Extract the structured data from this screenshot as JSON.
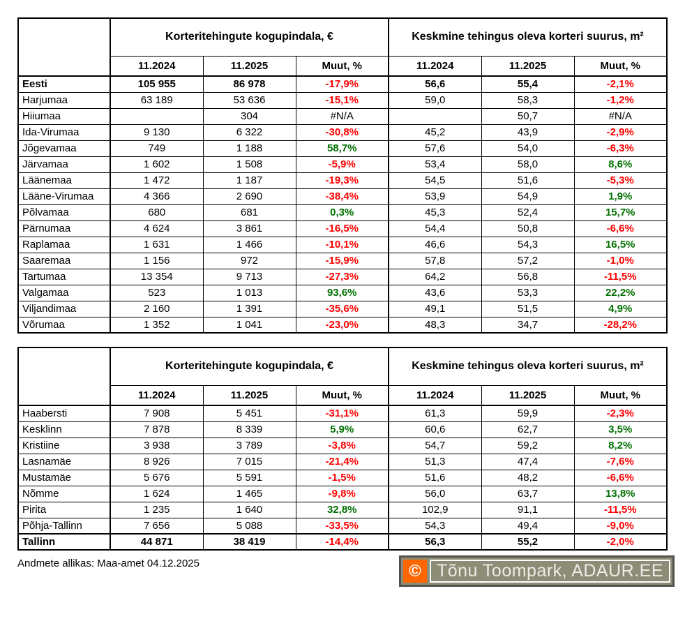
{
  "columns": {
    "group1": "Korteritehingute kogupindala, €",
    "group2": "Keskmine tehingus oleva korteri suurus, m²",
    "sub": [
      "11.2024",
      "11.2025",
      "Muut, %"
    ]
  },
  "chart_data": [
    {
      "type": "table",
      "group_headers": [
        "Korteritehingute kogupindala, €",
        "Keskmine tehingus oleva korteri suurus, m²"
      ],
      "sub_headers": [
        "11.2024",
        "11.2025",
        "Muut, %",
        "11.2024",
        "11.2025",
        "Muut, %"
      ],
      "rows": [
        {
          "name": "Eesti",
          "bold": true,
          "total": false,
          "values": [
            "105 955",
            "86 978",
            "-17,9%",
            "56,6",
            "55,4",
            "-2,1%"
          ]
        },
        {
          "name": "Harjumaa",
          "bold": false,
          "total": false,
          "values": [
            "63 189",
            "53 636",
            "-15,1%",
            "59,0",
            "58,3",
            "-1,2%"
          ]
        },
        {
          "name": "Hiiumaa",
          "bold": false,
          "total": false,
          "values": [
            "",
            "304",
            "#N/A",
            "",
            "50,7",
            "#N/A"
          ]
        },
        {
          "name": "Ida-Virumaa",
          "bold": false,
          "total": false,
          "values": [
            "9 130",
            "6 322",
            "-30,8%",
            "45,2",
            "43,9",
            "-2,9%"
          ]
        },
        {
          "name": "Jõgevamaa",
          "bold": false,
          "total": false,
          "values": [
            "749",
            "1 188",
            "58,7%",
            "57,6",
            "54,0",
            "-6,3%"
          ]
        },
        {
          "name": "Järvamaa",
          "bold": false,
          "total": false,
          "values": [
            "1 602",
            "1 508",
            "-5,9%",
            "53,4",
            "58,0",
            "8,6%"
          ]
        },
        {
          "name": "Läänemaa",
          "bold": false,
          "total": false,
          "values": [
            "1 472",
            "1 187",
            "-19,3%",
            "54,5",
            "51,6",
            "-5,3%"
          ]
        },
        {
          "name": "Lääne-Virumaa",
          "bold": false,
          "total": false,
          "values": [
            "4 366",
            "2 690",
            "-38,4%",
            "53,9",
            "54,9",
            "1,9%"
          ]
        },
        {
          "name": "Põlvamaa",
          "bold": false,
          "total": false,
          "values": [
            "680",
            "681",
            "0,3%",
            "45,3",
            "52,4",
            "15,7%"
          ]
        },
        {
          "name": "Pärnumaa",
          "bold": false,
          "total": false,
          "values": [
            "4 624",
            "3 861",
            "-16,5%",
            "54,4",
            "50,8",
            "-6,6%"
          ]
        },
        {
          "name": "Raplamaa",
          "bold": false,
          "total": false,
          "values": [
            "1 631",
            "1 466",
            "-10,1%",
            "46,6",
            "54,3",
            "16,5%"
          ]
        },
        {
          "name": "Saaremaa",
          "bold": false,
          "total": false,
          "values": [
            "1 156",
            "972",
            "-15,9%",
            "57,8",
            "57,2",
            "-1,0%"
          ]
        },
        {
          "name": "Tartumaa",
          "bold": false,
          "total": false,
          "values": [
            "13 354",
            "9 713",
            "-27,3%",
            "64,2",
            "56,8",
            "-11,5%"
          ]
        },
        {
          "name": "Valgamaa",
          "bold": false,
          "total": false,
          "values": [
            "523",
            "1 013",
            "93,6%",
            "43,6",
            "53,3",
            "22,2%"
          ]
        },
        {
          "name": "Viljandimaa",
          "bold": false,
          "total": false,
          "values": [
            "2 160",
            "1 391",
            "-35,6%",
            "49,1",
            "51,5",
            "4,9%"
          ]
        },
        {
          "name": "Võrumaa",
          "bold": false,
          "total": false,
          "values": [
            "1 352",
            "1 041",
            "-23,0%",
            "48,3",
            "34,7",
            "-28,2%"
          ]
        }
      ]
    },
    {
      "type": "table",
      "group_headers": [
        "Korteritehingute kogupindala, €",
        "Keskmine tehingus oleva korteri suurus, m²"
      ],
      "sub_headers": [
        "11.2024",
        "11.2025",
        "Muut, %",
        "11.2024",
        "11.2025",
        "Muut, %"
      ],
      "rows": [
        {
          "name": "Haabersti",
          "bold": false,
          "total": false,
          "values": [
            "7 908",
            "5 451",
            "-31,1%",
            "61,3",
            "59,9",
            "-2,3%"
          ]
        },
        {
          "name": "Kesklinn",
          "bold": false,
          "total": false,
          "values": [
            "7 878",
            "8 339",
            "5,9%",
            "60,6",
            "62,7",
            "3,5%"
          ]
        },
        {
          "name": "Kristiine",
          "bold": false,
          "total": false,
          "values": [
            "3 938",
            "3 789",
            "-3,8%",
            "54,7",
            "59,2",
            "8,2%"
          ]
        },
        {
          "name": "Lasnamäe",
          "bold": false,
          "total": false,
          "values": [
            "8 926",
            "7 015",
            "-21,4%",
            "51,3",
            "47,4",
            "-7,6%"
          ]
        },
        {
          "name": "Mustamäe",
          "bold": false,
          "total": false,
          "values": [
            "5 676",
            "5 591",
            "-1,5%",
            "51,6",
            "48,2",
            "-6,6%"
          ]
        },
        {
          "name": "Nõmme",
          "bold": false,
          "total": false,
          "values": [
            "1 624",
            "1 465",
            "-9,8%",
            "56,0",
            "63,7",
            "13,8%"
          ]
        },
        {
          "name": "Pirita",
          "bold": false,
          "total": false,
          "values": [
            "1 235",
            "1 640",
            "32,8%",
            "102,9",
            "91,1",
            "-11,5%"
          ]
        },
        {
          "name": "Põhja-Tallinn",
          "bold": false,
          "total": false,
          "values": [
            "7 656",
            "5 088",
            "-33,5%",
            "54,3",
            "49,4",
            "-9,0%"
          ]
        },
        {
          "name": "Tallinn",
          "bold": true,
          "total": true,
          "values": [
            "44 871",
            "38 419",
            "-14,4%",
            "56,3",
            "55,2",
            "-2,0%"
          ]
        }
      ]
    }
  ],
  "footer": {
    "source_note": "Andmete allikas: Maa-amet 04.12.2025"
  },
  "watermark": {
    "symbol": "©",
    "text": "Tõnu Toompark, ADAUR.EE",
    "accent_orange": "#FF6600",
    "badge_background": "#8C8C77"
  },
  "colors": {
    "negative_change": "#FF0000",
    "positive_change": "#007000",
    "na_change": "#000000"
  }
}
